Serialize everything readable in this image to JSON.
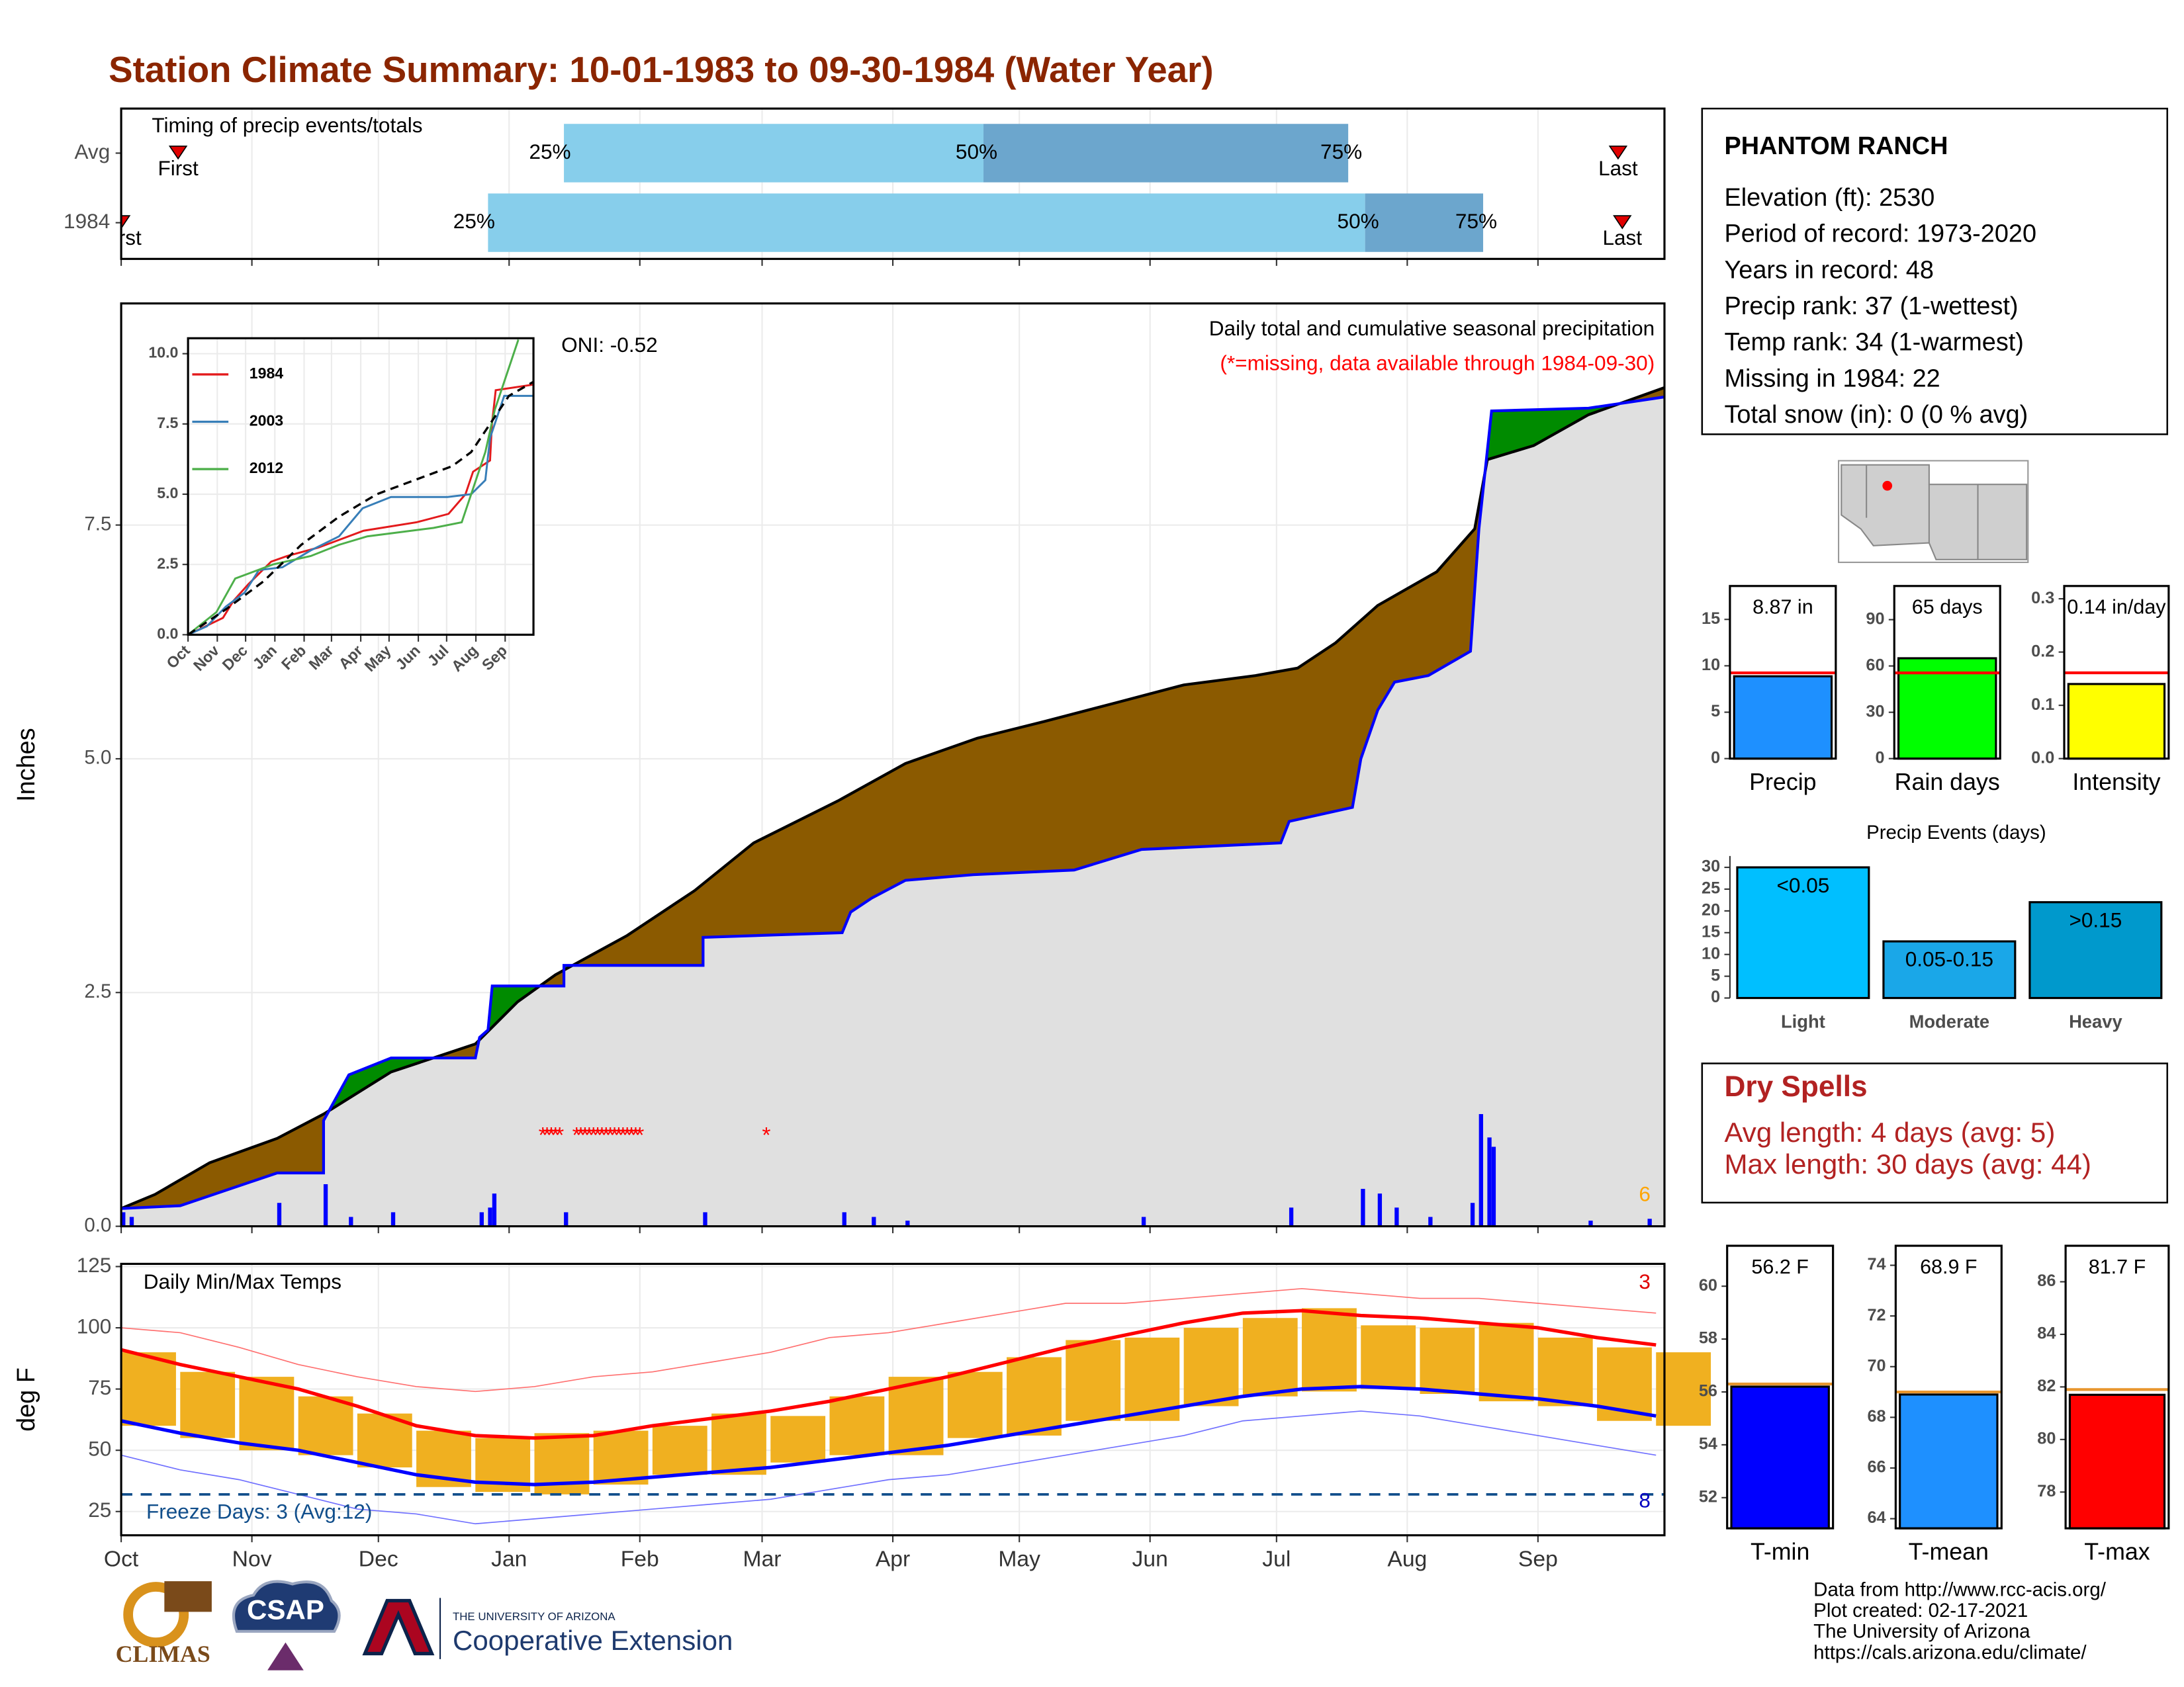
{
  "header": {
    "title": "Station Climate Summary: 10-01-1983 to 09-30-1984 (Water Year)"
  },
  "station": {
    "name": "PHANTOM RANCH",
    "lines": [
      "Elevation (ft): 2530",
      "Period of record: 1973-2020",
      "Years in record: 48",
      "Precip rank: 37 (1-wettest)",
      "Temp rank: 34 (1-warmest)",
      "Missing in 1984: 22",
      "Total snow (in): 0 (0 % avg)"
    ]
  },
  "dry_spells": {
    "title": "Dry Spells",
    "lines": [
      "Avg length: 4 days (avg: 5)",
      "Max length: 30 days (avg: 44)"
    ]
  },
  "footer": {
    "lines": [
      "Data from http://www.rcc-acis.org/",
      "Plot created: 02-17-2021",
      "The University of Arizona",
      "https://cals.arizona.edu/climate/"
    ]
  },
  "logos": {
    "climas": "CLIMAS",
    "csap": "CSAP",
    "ua": "THE UNIVERSITY OF ARIZONA",
    "extension": "Cooperative Extension"
  },
  "chart_data": [
    {
      "type": "timing",
      "annotation": "Timing of precip events/totals",
      "categories": [
        "Avg",
        "1984"
      ],
      "xlim": [
        0,
        366
      ],
      "xticks": [
        0,
        31,
        61,
        92,
        123,
        152,
        183,
        213,
        244,
        274,
        305,
        336
      ],
      "grid": true,
      "first": [
        13.5,
        0
      ],
      "q25": [
        105,
        87
      ],
      "q50": [
        204.5,
        295
      ],
      "q75": [
        291,
        323
      ],
      "last": [
        355,
        356
      ],
      "labels": {
        "first": "First",
        "q25": "25%",
        "q50": "50%",
        "q75": "75%",
        "last": "Last"
      },
      "colors": [
        "#87ceeb",
        "#6ca6cd"
      ],
      "marker_color": "#e00000"
    },
    {
      "type": "area",
      "title": "Daily total and cumulative seasonal precipitation",
      "subtitle": "(*=missing, data available through 1984-09-30)",
      "ylabel": "Inches",
      "oni": "ONI: -0.52",
      "corner_label": "6",
      "xlim": [
        0,
        366
      ],
      "xticks": [
        0,
        31,
        61,
        92,
        123,
        152,
        183,
        213,
        244,
        274,
        305,
        336
      ],
      "ylim": [
        0,
        9.87
      ],
      "yticks": [
        {
          "value": 0,
          "label": "0.0"
        },
        2.5,
        {
          "value": 5,
          "label": "5.0"
        },
        7.5
      ],
      "grid": true,
      "fill": "#e0e0e0",
      "above_color": "#008b00",
      "below_color": "#8b5a00",
      "series": [
        {
          "color": "#000000",
          "x": [
            0,
            8,
            21,
            37,
            48,
            64,
            84,
            94,
            103,
            120,
            136,
            150,
            170,
            186,
            203,
            219,
            236,
            252,
            269,
            279,
            288,
            298,
            312,
            321,
            324,
            335,
            348,
            366
          ],
          "values": [
            0.19,
            0.34,
            0.68,
            0.94,
            1.2,
            1.65,
            1.95,
            2.4,
            2.69,
            3.11,
            3.59,
            4.1,
            4.55,
            4.95,
            5.22,
            5.4,
            5.6,
            5.79,
            5.89,
            5.97,
            6.24,
            6.64,
            7.0,
            7.46,
            8.2,
            8.35,
            8.68,
            8.97
          ]
        },
        {
          "color": "#0000ff",
          "x": [
            0,
            14,
            37,
            48,
            48,
            54,
            64,
            84,
            85,
            87,
            88,
            105,
            105,
            138,
            138,
            171,
            173,
            178,
            186,
            202,
            226,
            242,
            275,
            277,
            292,
            294,
            298,
            302,
            310,
            320,
            322,
            325,
            348,
            366
          ],
          "values": [
            0.19,
            0.22,
            0.57,
            0.57,
            1.13,
            1.62,
            1.8,
            1.8,
            2.02,
            2.1,
            2.57,
            2.57,
            2.79,
            2.79,
            3.09,
            3.14,
            3.36,
            3.51,
            3.7,
            3.76,
            3.81,
            4.03,
            4.1,
            4.33,
            4.48,
            5.0,
            5.52,
            5.82,
            5.89,
            6.15,
            7.46,
            8.72,
            8.75,
            8.87
          ]
        }
      ],
      "bars": {
        "color": "#0000ff",
        "x": [
          0,
          2,
          37,
          48,
          54,
          64,
          85,
          87,
          88,
          105,
          138,
          171,
          178,
          186,
          242,
          277,
          294,
          298,
          302,
          310,
          320,
          322,
          324,
          325,
          348,
          362
        ],
        "values": [
          0.15,
          0.1,
          0.25,
          0.45,
          0.1,
          0.15,
          0.15,
          0.2,
          0.35,
          0.15,
          0.15,
          0.15,
          0.1,
          0.06,
          0.1,
          0.2,
          0.4,
          0.35,
          0.2,
          0.1,
          0.25,
          1.2,
          0.95,
          0.85,
          0.06,
          0.08
        ]
      },
      "missing": {
        "marker": "*",
        "color": "#ff0000",
        "x": [
          100,
          101,
          102,
          103,
          104,
          108,
          109,
          110,
          111,
          112,
          113,
          114,
          115,
          116,
          117,
          118,
          119,
          120,
          121,
          122,
          123,
          153
        ]
      }
    },
    {
      "type": "line",
      "xlim": [
        0,
        366
      ],
      "ylim": [
        0,
        10.55
      ],
      "xticks": [
        {
          "value": 0,
          "label": "Oct"
        },
        {
          "value": 31,
          "label": "Nov"
        },
        {
          "value": 61,
          "label": "Dec"
        },
        {
          "value": 92,
          "label": "Jan"
        },
        {
          "value": 123,
          "label": "Feb"
        },
        {
          "value": 152,
          "label": "Mar"
        },
        {
          "value": 183,
          "label": "Apr"
        },
        {
          "value": 213,
          "label": "May"
        },
        {
          "value": 244,
          "label": "Jun"
        },
        {
          "value": 274,
          "label": "Jul"
        },
        {
          "value": 305,
          "label": "Aug"
        },
        {
          "value": 336,
          "label": "Sep"
        }
      ],
      "yticks": [
        {
          "value": 0,
          "label": "0.0"
        },
        2.5,
        {
          "value": 5,
          "label": "5.0"
        },
        7.5,
        {
          "value": 10,
          "label": "10.0"
        }
      ],
      "grid": true,
      "series": [
        {
          "name": "1984",
          "color": "#e31a1c",
          "x": [
            0,
            37,
            48,
            64,
            88,
            105,
            138,
            186,
            242,
            276,
            294,
            302,
            320,
            322,
            326,
            366
          ],
          "values": [
            0,
            0.6,
            1.2,
            1.8,
            2.6,
            2.8,
            3.1,
            3.7,
            4.0,
            4.3,
            5.0,
            5.8,
            6.2,
            7.5,
            8.7,
            8.9
          ]
        },
        {
          "name": "2003",
          "color": "#377eb8",
          "x": [
            0,
            20,
            40,
            60,
            75,
            100,
            130,
            160,
            185,
            215,
            275,
            300,
            315,
            320,
            335,
            366
          ],
          "values": [
            0,
            0.3,
            1.0,
            1.5,
            2.3,
            2.4,
            3.0,
            3.5,
            4.5,
            4.9,
            4.9,
            5.0,
            5.5,
            7.0,
            8.5,
            8.5
          ]
        },
        {
          "name": "2012",
          "color": "#4daf4a",
          "x": [
            0,
            30,
            50,
            90,
            130,
            160,
            190,
            260,
            290,
            300,
            315,
            325,
            340,
            350
          ],
          "values": [
            0,
            0.8,
            2.0,
            2.5,
            2.8,
            3.2,
            3.5,
            3.8,
            4.0,
            5.0,
            6.5,
            8.0,
            9.5,
            10.5
          ]
        },
        {
          "color": "#000000",
          "dashed": true,
          "x": [
            0,
            40,
            80,
            120,
            160,
            200,
            240,
            280,
            300,
            320,
            340,
            366
          ],
          "values": [
            0,
            0.9,
            1.9,
            3.2,
            4.2,
            5.0,
            5.5,
            6.0,
            6.5,
            7.5,
            8.5,
            9.0
          ]
        }
      ]
    },
    {
      "type": "range",
      "title": "Daily Min/Max Temps",
      "ylabel": "deg F",
      "freeze_label": "Freeze Days: 3 (Avg:12)",
      "freeze_line": 32,
      "freeze_color": "#104e8b",
      "count_max": "3",
      "count_min": "8",
      "xlim": [
        0,
        366
      ],
      "ylim": [
        15.3,
        126.1
      ],
      "xticks": [
        {
          "value": 0,
          "label": "Oct"
        },
        {
          "value": 31,
          "label": "Nov"
        },
        {
          "value": 61,
          "label": "Dec"
        },
        {
          "value": 92,
          "label": "Jan"
        },
        {
          "value": 123,
          "label": "Feb"
        },
        {
          "value": 152,
          "label": "Mar"
        },
        {
          "value": 183,
          "label": "Apr"
        },
        {
          "value": 213,
          "label": "May"
        },
        {
          "value": 244,
          "label": "Jun"
        },
        {
          "value": 274,
          "label": "Jul"
        },
        {
          "value": 305,
          "label": "Aug"
        },
        {
          "value": 336,
          "label": "Sep"
        }
      ],
      "yticks": [
        25,
        50,
        75,
        100,
        125
      ],
      "grid": true,
      "x": [
        0,
        14,
        28,
        42,
        56,
        70,
        84,
        98,
        112,
        126,
        140,
        154,
        168,
        182,
        196,
        210,
        224,
        238,
        252,
        266,
        280,
        294,
        308,
        322,
        336,
        350,
        364
      ],
      "bars": {
        "color": "#f0b020",
        "low": [
          60,
          55,
          50,
          48,
          43,
          35,
          33,
          32,
          36,
          40,
          40,
          45,
          48,
          48,
          55,
          56,
          62,
          62,
          68,
          72,
          74,
          75,
          73,
          70,
          68,
          62,
          60
        ],
        "high": [
          90,
          82,
          80,
          72,
          65,
          58,
          55,
          57,
          58,
          60,
          65,
          64,
          72,
          80,
          82,
          88,
          95,
          96,
          100,
          104,
          108,
          101,
          100,
          102,
          96,
          92,
          90
        ]
      },
      "series": [
        {
          "color": "#ff7070",
          "width": 0.8,
          "values": [
            100,
            98,
            92,
            85,
            80,
            76,
            74,
            76,
            80,
            82,
            86,
            90,
            96,
            98,
            102,
            106,
            110,
            110,
            112,
            114,
            116,
            114,
            112,
            112,
            110,
            108,
            106
          ]
        },
        {
          "color": "#ff0000",
          "width": 2.5,
          "values": [
            91,
            85,
            80,
            75,
            68,
            60,
            56,
            55,
            56,
            60,
            63,
            66,
            70,
            75,
            80,
            86,
            92,
            97,
            102,
            106,
            107,
            105,
            104,
            102,
            100,
            96,
            93
          ]
        },
        {
          "color": "#0000ff",
          "width": 2.5,
          "values": [
            62,
            57,
            53,
            50,
            45,
            40,
            37,
            36,
            37,
            39,
            41,
            43,
            46,
            49,
            52,
            56,
            60,
            64,
            68,
            72,
            75,
            76,
            75,
            73,
            71,
            68,
            64
          ]
        },
        {
          "color": "#7070ff",
          "width": 0.8,
          "values": [
            48,
            42,
            38,
            32,
            26,
            24,
            20,
            22,
            24,
            26,
            28,
            30,
            34,
            38,
            40,
            44,
            48,
            52,
            56,
            62,
            64,
            66,
            64,
            60,
            56,
            52,
            48
          ]
        }
      ]
    },
    {
      "type": "bar",
      "categories": [
        "Precip"
      ],
      "values": [
        8.87
      ],
      "value_labels": [
        "8.87 in"
      ],
      "color": "#1e90ff",
      "average": 9.24,
      "average_color": "#ff0000",
      "ylim": [
        0,
        18.6
      ],
      "yticks": [
        0,
        5,
        10,
        15
      ]
    },
    {
      "type": "bar",
      "categories": [
        "Rain days"
      ],
      "values": [
        65
      ],
      "value_labels": [
        "65 days"
      ],
      "color": "#00ff00",
      "average": 55.5,
      "average_color": "#ff0000",
      "ylim": [
        0,
        111.8
      ],
      "yticks": [
        0,
        30,
        60,
        90
      ]
    },
    {
      "type": "bar",
      "categories": [
        "Intensity"
      ],
      "values": [
        0.14
      ],
      "value_labels": [
        "0.14 in/day"
      ],
      "color": "#ffff00",
      "average": 0.161,
      "average_color": "#ff0000",
      "ylim": [
        0,
        0.324
      ],
      "yticks": [
        {
          "value": 0,
          "label": "0.0"
        },
        0.1,
        0.2,
        0.3
      ]
    },
    {
      "type": "bar",
      "title": "Precip Events (days)",
      "categories": [
        "Light",
        "Moderate",
        "Heavy"
      ],
      "values": [
        30,
        13,
        22
      ],
      "bar_labels": [
        "<0.05",
        "0.05-0.15",
        ">0.15"
      ],
      "colors": [
        "#00bfff",
        "#1aa7e8",
        "#0099cc"
      ],
      "ylim": [
        0,
        32.6
      ],
      "yticks": [
        0,
        5,
        10,
        15,
        20,
        25,
        30
      ]
    },
    {
      "type": "bar",
      "categories": [
        "T-min"
      ],
      "values": [
        56.2
      ],
      "value_labels": [
        "56.2 F"
      ],
      "color": "#0000ff",
      "average": 56.3,
      "average_color": "#e8962e",
      "ylim": [
        50.84,
        61.53
      ],
      "yticks": [
        52,
        54,
        56,
        58,
        60
      ]
    },
    {
      "type": "bar",
      "categories": [
        "T-mean"
      ],
      "values": [
        68.9
      ],
      "value_labels": [
        "68.9 F"
      ],
      "color": "#1e90ff",
      "average": 69.0,
      "average_color": "#e8962e",
      "ylim": [
        63.62,
        74.77
      ],
      "yticks": [
        64,
        66,
        68,
        70,
        72,
        74
      ]
    },
    {
      "type": "bar",
      "categories": [
        "T-max"
      ],
      "values": [
        81.7
      ],
      "value_labels": [
        "81.7 F"
      ],
      "color": "#ff0000",
      "average": 81.9,
      "average_color": "#e8962e",
      "ylim": [
        76.62,
        87.37
      ],
      "yticks": [
        78,
        80,
        82,
        84,
        86
      ]
    }
  ]
}
